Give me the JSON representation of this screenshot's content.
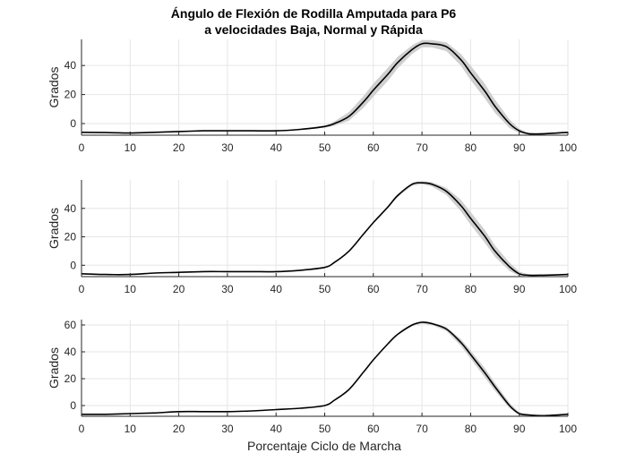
{
  "title_line1": "Ángulo de Flexión de Rodilla Amputada para P6",
  "title_line2": "a velocidades Baja, Normal y Rápida",
  "xlabel": "Porcentaje Ciclo de Marcha",
  "colors": {
    "mean_line": "#000000",
    "band": "#cfcfcf",
    "grid": "#e6e6e6",
    "axis": "#262626"
  },
  "chart_data": [
    {
      "type": "line",
      "ylabel": "Grados",
      "xlim": [
        0,
        100
      ],
      "ylim": [
        -8,
        58
      ],
      "xticks": [
        0,
        10,
        20,
        30,
        40,
        50,
        60,
        70,
        80,
        90,
        100
      ],
      "yticks": [
        0,
        20,
        40
      ],
      "grid": true,
      "x": [
        0,
        5,
        10,
        15,
        20,
        25,
        30,
        35,
        40,
        45,
        50,
        52,
        55,
        58,
        60,
        63,
        65,
        68,
        70,
        72,
        75,
        78,
        80,
        83,
        85,
        88,
        90,
        92,
        95,
        100
      ],
      "y": [
        -6,
        -6.2,
        -6.5,
        -6,
        -5.5,
        -5,
        -5,
        -5,
        -5,
        -4,
        -2,
        0,
        5,
        15,
        23,
        34,
        42,
        51,
        55,
        55,
        53,
        44,
        35,
        22,
        12,
        0,
        -5,
        -7,
        -7,
        -6
      ],
      "band": [
        0,
        0,
        0,
        0,
        0,
        0,
        0,
        0,
        0,
        0.5,
        0.8,
        1.5,
        3,
        4,
        4.5,
        4.5,
        4,
        3,
        2.5,
        2.5,
        3,
        4,
        5,
        5,
        4.5,
        3,
        1.5,
        0.5,
        0.5,
        0.5
      ]
    },
    {
      "type": "line",
      "ylabel": "Grados",
      "xlim": [
        0,
        100
      ],
      "ylim": [
        -8,
        60
      ],
      "xticks": [
        0,
        10,
        20,
        30,
        40,
        50,
        60,
        70,
        80,
        90,
        100
      ],
      "yticks": [
        0,
        20,
        40
      ],
      "grid": true,
      "x": [
        0,
        5,
        10,
        15,
        20,
        25,
        30,
        35,
        40,
        45,
        50,
        52,
        55,
        58,
        60,
        63,
        65,
        68,
        70,
        72,
        75,
        78,
        80,
        83,
        85,
        88,
        90,
        92,
        95,
        100
      ],
      "y": [
        -6,
        -6.5,
        -6.5,
        -5.5,
        -5,
        -4.5,
        -4.5,
        -4.5,
        -4.5,
        -3.5,
        -1.5,
        2,
        10,
        22,
        30,
        41,
        49,
        57,
        58,
        57,
        52,
        42,
        33,
        20,
        10,
        -1,
        -6,
        -7,
        -7,
        -6.5
      ],
      "band": [
        0,
        0,
        0,
        0,
        0,
        0,
        0,
        0,
        0,
        0,
        0,
        0,
        0,
        0.3,
        0.5,
        0.8,
        1,
        1,
        1,
        1.5,
        2.5,
        4,
        4.5,
        4.5,
        4,
        3,
        1.5,
        0.5,
        0.3,
        0.3
      ]
    },
    {
      "type": "line",
      "ylabel": "Grados",
      "xlabel": "Porcentaje Ciclo de Marcha",
      "xlim": [
        0,
        100
      ],
      "ylim": [
        -8,
        64
      ],
      "xticks": [
        0,
        10,
        20,
        30,
        40,
        50,
        60,
        70,
        80,
        90,
        100
      ],
      "yticks": [
        0,
        20,
        40,
        60
      ],
      "grid": true,
      "x": [
        0,
        5,
        10,
        15,
        20,
        25,
        30,
        35,
        40,
        45,
        50,
        52,
        55,
        58,
        60,
        63,
        65,
        68,
        70,
        72,
        75,
        78,
        80,
        83,
        85,
        88,
        90,
        92,
        95,
        100
      ],
      "y": [
        -6.5,
        -6.5,
        -6,
        -5.5,
        -4.5,
        -4.5,
        -4.5,
        -4,
        -3,
        -2,
        0,
        4,
        12,
        25,
        34,
        46,
        53,
        60,
        62,
        61,
        57,
        47,
        38,
        24,
        14,
        0,
        -6,
        -7,
        -7.5,
        -6.5
      ],
      "band": [
        0,
        0,
        0,
        0,
        0,
        0,
        0,
        0,
        0,
        0,
        0,
        0,
        0,
        0,
        0,
        0.3,
        0.5,
        0.8,
        1,
        1,
        1.5,
        2.5,
        3,
        3.5,
        3,
        2,
        1,
        0.5,
        0.3,
        0.3
      ]
    }
  ]
}
